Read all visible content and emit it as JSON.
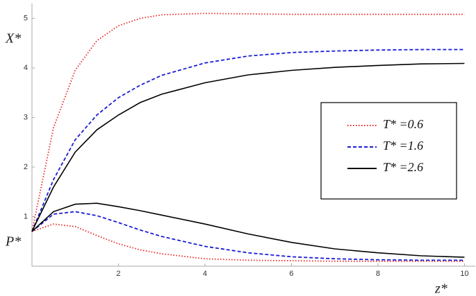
{
  "chart_data": {
    "type": "line",
    "y_labels": [
      "X*",
      "P*"
    ],
    "x_label": "z*",
    "x": [
      0,
      0.5,
      1,
      1.5,
      2,
      2.5,
      3,
      4,
      5,
      6,
      7,
      8,
      9,
      10
    ],
    "series": [
      {
        "name": "T* =0.6",
        "color": "#e8231f",
        "dash": "dotted",
        "values": [
          0.7,
          2.8,
          3.95,
          4.55,
          4.85,
          5.0,
          5.07,
          5.1,
          5.09,
          5.08,
          5.08,
          5.08,
          5.08,
          5.08
        ]
      },
      {
        "name": "T* =1.6",
        "color": "#1a1ad6",
        "dash": "dashed",
        "values": [
          0.7,
          1.75,
          2.55,
          3.05,
          3.4,
          3.65,
          3.85,
          4.1,
          4.24,
          4.31,
          4.34,
          4.36,
          4.37,
          4.37
        ]
      },
      {
        "name": "T* =2.6",
        "color": "#000000",
        "dash": "solid",
        "values": [
          0.7,
          1.6,
          2.3,
          2.75,
          3.05,
          3.3,
          3.47,
          3.7,
          3.86,
          3.95,
          4.01,
          4.05,
          4.08,
          4.09
        ]
      },
      {
        "color": "#e8231f",
        "dash": "dotted",
        "values": [
          0.7,
          0.85,
          0.8,
          0.62,
          0.45,
          0.33,
          0.25,
          0.15,
          0.12,
          0.11,
          0.1,
          0.1,
          0.1,
          0.1
        ]
      },
      {
        "color": "#1a1ad6",
        "dash": "dashed",
        "values": [
          0.7,
          1.05,
          1.1,
          1.02,
          0.88,
          0.73,
          0.6,
          0.4,
          0.27,
          0.19,
          0.15,
          0.13,
          0.12,
          0.12
        ]
      },
      {
        "color": "#000000",
        "dash": "solid",
        "values": [
          0.7,
          1.1,
          1.25,
          1.27,
          1.2,
          1.12,
          1.03,
          0.85,
          0.65,
          0.48,
          0.35,
          0.27,
          0.21,
          0.18
        ]
      }
    ],
    "xlim": [
      0,
      10.25
    ],
    "ylim": [
      0,
      5.3
    ],
    "xticks": [
      2,
      4,
      6,
      8,
      10
    ],
    "yticks": [
      1,
      2,
      3,
      4,
      5
    ],
    "grid": false,
    "legend": "right"
  }
}
